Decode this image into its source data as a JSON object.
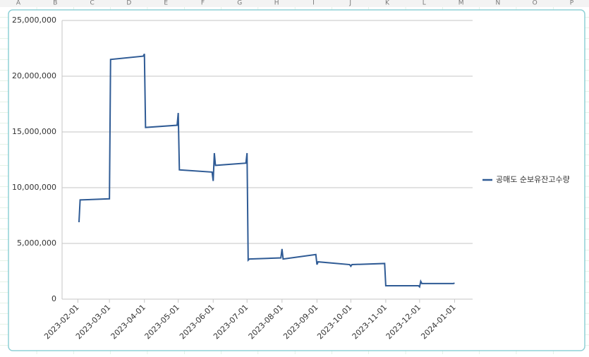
{
  "sheet": {
    "columns": [
      "A",
      "B",
      "C",
      "D",
      "E",
      "F",
      "G",
      "H",
      "I",
      "J",
      "K",
      "L",
      "M",
      "N",
      "O",
      "P"
    ]
  },
  "chart_data": {
    "type": "line",
    "x": [
      "2023-02-02",
      "2023-02-03",
      "2023-03-01",
      "2023-03-02",
      "2023-03-31",
      "2023-04-01",
      "2023-04-02",
      "2023-04-30",
      "2023-05-01",
      "2023-05-02",
      "2023-05-31",
      "2023-06-01",
      "2023-06-02",
      "2023-06-03",
      "2023-06-30",
      "2023-07-01",
      "2023-07-02",
      "2023-07-03",
      "2023-07-31",
      "2023-08-01",
      "2023-08-02",
      "2023-08-31",
      "2023-09-01",
      "2023-09-02",
      "2023-09-30",
      "2023-10-01",
      "2023-10-02",
      "2023-10-31",
      "2023-11-01",
      "2023-11-30",
      "2023-12-01",
      "2023-12-02",
      "2023-12-03",
      "2023-12-31",
      "2024-01-01"
    ],
    "series": [
      {
        "name": "공매도 순보유잔고수량",
        "color": "#2f5b95",
        "values": [
          6900000,
          8900000,
          9000000,
          21500000,
          21800000,
          22000000,
          15400000,
          15600000,
          16700000,
          11600000,
          11400000,
          10600000,
          13100000,
          12000000,
          12200000,
          13100000,
          3500000,
          3600000,
          3700000,
          4500000,
          3600000,
          4000000,
          3100000,
          3350000,
          3100000,
          2950000,
          3100000,
          3200000,
          1200000,
          1200000,
          1100000,
          1600000,
          1400000,
          1400000,
          1450000
        ]
      }
    ],
    "xlim": [
      "2023-01-18",
      "2024-01-17"
    ],
    "xticks": [
      "2023-02-01",
      "2023-03-01",
      "2023-04-01",
      "2023-05-01",
      "2023-06-01",
      "2023-07-01",
      "2023-08-01",
      "2023-09-01",
      "2023-10-01",
      "2023-11-01",
      "2023-12-01",
      "2024-01-01"
    ],
    "ylim": [
      0,
      25000000
    ],
    "yticks": [
      0,
      {
        "value": 5000000,
        "label": "5,000,000"
      },
      {
        "value": 10000000,
        "label": "10,000,000"
      },
      {
        "value": 15000000,
        "label": "15,000,000"
      },
      {
        "value": 20000000,
        "label": "20,000,000"
      },
      {
        "value": 25000000,
        "label": "25,000,000"
      }
    ],
    "grid": true,
    "legend": "right"
  }
}
